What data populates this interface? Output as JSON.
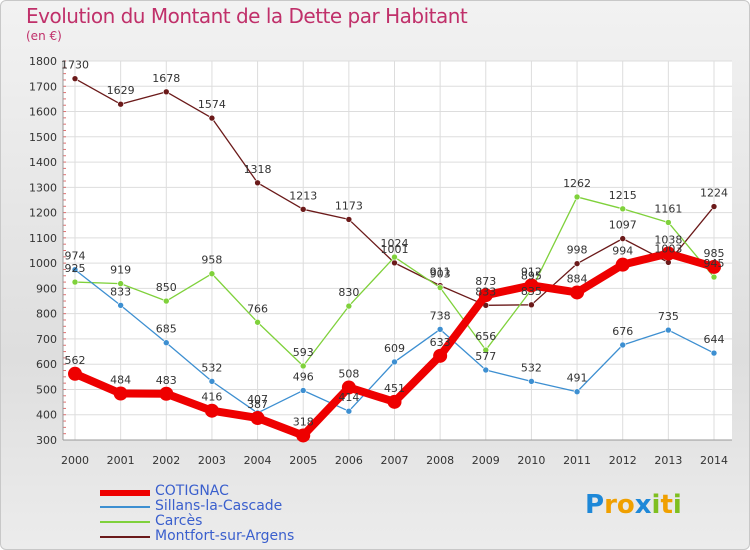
{
  "title": "Evolution du Montant de la Dette par Habitant",
  "subtitle": "(en €)",
  "logo": {
    "letters": [
      "P",
      "r",
      "o",
      "x",
      "i",
      "t",
      "i"
    ],
    "colors": [
      "#1e88d8",
      "#f0a000",
      "#f0a000",
      "#1e88d8",
      "#7fbf20",
      "#f0a000",
      "#7fbf20"
    ]
  },
  "chart_data": {
    "type": "line",
    "title": "Evolution du Montant de la Dette par Habitant",
    "ylabel": "(en €)",
    "xlabel": "",
    "ylim": [
      300,
      1800
    ],
    "yticks": [
      300,
      400,
      500,
      600,
      700,
      800,
      900,
      1000,
      1100,
      1200,
      1300,
      1400,
      1500,
      1600,
      1700,
      1800
    ],
    "x": [
      "2000",
      "2001",
      "2002",
      "2003",
      "2004",
      "2005",
      "2006",
      "2007",
      "2008",
      "2009",
      "2010",
      "2011",
      "2012",
      "2013",
      "2014"
    ],
    "grid": true,
    "legend_position": "bottom-left",
    "series": [
      {
        "name": "COTIGNAC",
        "color": "#ee0000",
        "values": [
          562,
          484,
          483,
          416,
          387,
          318,
          508,
          451,
          633,
          873,
          912,
          884,
          994,
          1038,
          985
        ]
      },
      {
        "name": "Sillans-la-Cascade",
        "color": "#3d8fd1",
        "values": [
          974,
          833,
          685,
          532,
          407,
          496,
          414,
          609,
          738,
          577,
          532,
          491,
          676,
          735,
          644
        ]
      },
      {
        "name": "Carcès",
        "color": "#7fd13b",
        "values": [
          925,
          919,
          850,
          958,
          766,
          593,
          830,
          1024,
          903,
          656,
          895,
          1262,
          1215,
          1161,
          945
        ]
      },
      {
        "name": "Montfort-sur-Argens",
        "color": "#6b1a1a",
        "values": [
          1730,
          1629,
          1678,
          1574,
          1318,
          1213,
          1173,
          1001,
          911,
          833,
          835,
          998,
          1097,
          1003,
          1224
        ]
      }
    ]
  }
}
